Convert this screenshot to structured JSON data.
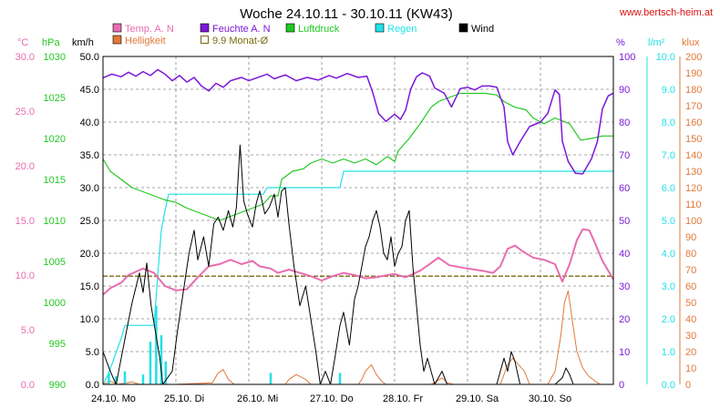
{
  "chart_data": {
    "type": "line",
    "title": "Woche 24.10.11 - 30.10.11 (KW43)",
    "source": "www.bertsch-heim.at",
    "colors": {
      "temp": "#e86cb0",
      "feuchte": "#7a18d8",
      "luftdruck": "#22c822",
      "regen": "#22e0e8",
      "wind": "#000000",
      "helligkeit": "#e07838",
      "monat": "#7a6a10",
      "link": "#dd1111",
      "grid": "#888888"
    },
    "legend": [
      {
        "label": "Temp. A. N",
        "key": "temp",
        "style": "box"
      },
      {
        "label": "Feuchte A. N",
        "key": "feuchte",
        "style": "box"
      },
      {
        "label": "Luftdruck",
        "key": "luftdruck",
        "style": "box"
      },
      {
        "label": "Regen",
        "key": "regen",
        "style": "box"
      },
      {
        "label": "Wind",
        "key": "wind",
        "style": "box"
      },
      {
        "label": "Helligkeit",
        "key": "helligkeit",
        "style": "box"
      },
      {
        "label": "9.9 Monat-Ø",
        "key": "monat",
        "style": "outline"
      }
    ],
    "axes": {
      "temp": {
        "unit": "°C",
        "min": 0,
        "max": 30,
        "step": 5,
        "decimals": 1
      },
      "pressure": {
        "unit": "hPa",
        "min": 990,
        "max": 1030,
        "step": 5,
        "decimals": 0
      },
      "wind": {
        "unit": "km/h",
        "min": 0,
        "max": 50,
        "step": 5,
        "decimals": 1
      },
      "humidity": {
        "unit": "%",
        "min": 0,
        "max": 100,
        "step": 10,
        "decimals": 0
      },
      "rain": {
        "unit": "l/m²",
        "min": 0,
        "max": 10,
        "step": 1,
        "decimals": 1
      },
      "lux": {
        "unit": "klux",
        "min": 0,
        "max": 200,
        "step": 10,
        "decimals": 0
      }
    },
    "x_range": [
      0,
      7
    ],
    "x_labels": [
      "24.10. Mo",
      "25.10. Di",
      "26.10. Mi",
      "27.10. Do",
      "28.10. Fr",
      "29.10. Sa",
      "30.10. So"
    ],
    "series": {
      "temp": [
        [
          0,
          8.2
        ],
        [
          0.1,
          8.8
        ],
        [
          0.25,
          9.3
        ],
        [
          0.35,
          10.0
        ],
        [
          0.45,
          10.3
        ],
        [
          0.55,
          10.6
        ],
        [
          0.7,
          10.2
        ],
        [
          0.85,
          9.0
        ],
        [
          1.0,
          8.6
        ],
        [
          1.15,
          8.7
        ],
        [
          1.3,
          9.8
        ],
        [
          1.45,
          10.8
        ],
        [
          1.6,
          11.0
        ],
        [
          1.75,
          11.4
        ],
        [
          1.9,
          11.0
        ],
        [
          2.05,
          11.3
        ],
        [
          2.15,
          10.8
        ],
        [
          2.3,
          10.6
        ],
        [
          2.4,
          10.2
        ],
        [
          2.55,
          10.5
        ],
        [
          2.7,
          10.2
        ],
        [
          2.85,
          9.9
        ],
        [
          3.0,
          9.5
        ],
        [
          3.15,
          9.9
        ],
        [
          3.3,
          10.2
        ],
        [
          3.45,
          10.0
        ],
        [
          3.6,
          9.7
        ],
        [
          3.75,
          9.8
        ],
        [
          3.9,
          10.0
        ],
        [
          4.0,
          10.1
        ],
        [
          4.15,
          9.8
        ],
        [
          4.35,
          10.4
        ],
        [
          4.5,
          11.1
        ],
        [
          4.6,
          11.6
        ],
        [
          4.75,
          10.9
        ],
        [
          5.0,
          10.6
        ],
        [
          5.2,
          10.4
        ],
        [
          5.35,
          10.2
        ],
        [
          5.45,
          10.8
        ],
        [
          5.55,
          12.4
        ],
        [
          5.65,
          12.7
        ],
        [
          5.75,
          12.2
        ],
        [
          5.9,
          11.6
        ],
        [
          6.05,
          11.4
        ],
        [
          6.2,
          11.0
        ],
        [
          6.3,
          9.4
        ],
        [
          6.4,
          11.0
        ],
        [
          6.5,
          13.2
        ],
        [
          6.58,
          14.2
        ],
        [
          6.67,
          14.1
        ],
        [
          6.75,
          12.9
        ],
        [
          6.85,
          11.3
        ],
        [
          7.0,
          9.6
        ]
      ],
      "feuchte": [
        [
          0,
          93.5
        ],
        [
          0.12,
          94.6
        ],
        [
          0.25,
          93.8
        ],
        [
          0.35,
          95.2
        ],
        [
          0.45,
          94.0
        ],
        [
          0.55,
          95.4
        ],
        [
          0.65,
          94.2
        ],
        [
          0.75,
          96.0
        ],
        [
          0.85,
          94.6
        ],
        [
          0.95,
          92.6
        ],
        [
          1.05,
          94.2
        ],
        [
          1.15,
          92.2
        ],
        [
          1.25,
          93.6
        ],
        [
          1.35,
          91.0
        ],
        [
          1.45,
          89.5
        ],
        [
          1.55,
          91.8
        ],
        [
          1.65,
          90.6
        ],
        [
          1.75,
          92.6
        ],
        [
          1.9,
          93.6
        ],
        [
          2.0,
          92.6
        ],
        [
          2.15,
          93.8
        ],
        [
          2.25,
          94.6
        ],
        [
          2.35,
          93.2
        ],
        [
          2.5,
          94.4
        ],
        [
          2.65,
          92.6
        ],
        [
          2.8,
          93.6
        ],
        [
          2.95,
          92.8
        ],
        [
          3.1,
          94.2
        ],
        [
          3.2,
          93.4
        ],
        [
          3.35,
          94.8
        ],
        [
          3.5,
          93.6
        ],
        [
          3.62,
          94.0
        ],
        [
          3.7,
          89.0
        ],
        [
          3.78,
          82.6
        ],
        [
          3.88,
          80.2
        ],
        [
          4.0,
          82.4
        ],
        [
          4.08,
          80.8
        ],
        [
          4.15,
          83.6
        ],
        [
          4.22,
          90.0
        ],
        [
          4.3,
          93.8
        ],
        [
          4.38,
          95.0
        ],
        [
          4.48,
          94.0
        ],
        [
          4.55,
          90.4
        ],
        [
          4.68,
          88.8
        ],
        [
          4.78,
          84.6
        ],
        [
          4.9,
          90.2
        ],
        [
          5.0,
          90.6
        ],
        [
          5.1,
          89.8
        ],
        [
          5.2,
          91.0
        ],
        [
          5.3,
          91.0
        ],
        [
          5.4,
          90.6
        ],
        [
          5.5,
          84.6
        ],
        [
          5.55,
          74.0
        ],
        [
          5.62,
          70.0
        ],
        [
          5.72,
          74.0
        ],
        [
          5.85,
          78.6
        ],
        [
          6.0,
          80.0
        ],
        [
          6.1,
          82.6
        ],
        [
          6.2,
          89.8
        ],
        [
          6.26,
          88.4
        ],
        [
          6.3,
          74.2
        ],
        [
          6.38,
          68.0
        ],
        [
          6.48,
          64.4
        ],
        [
          6.58,
          64.2
        ],
        [
          6.7,
          68.8
        ],
        [
          6.78,
          74.0
        ],
        [
          6.85,
          84.0
        ],
        [
          6.93,
          88.0
        ],
        [
          7.0,
          88.8
        ]
      ],
      "luftdruck": [
        [
          0,
          1017.5
        ],
        [
          0.1,
          1016.0
        ],
        [
          0.25,
          1015.0
        ],
        [
          0.4,
          1014.0
        ],
        [
          0.55,
          1013.5
        ],
        [
          0.7,
          1013.0
        ],
        [
          0.85,
          1012.5
        ],
        [
          1.0,
          1012.2
        ],
        [
          1.15,
          1011.5
        ],
        [
          1.3,
          1011.0
        ],
        [
          1.45,
          1010.5
        ],
        [
          1.6,
          1010.0
        ],
        [
          1.75,
          1010.5
        ],
        [
          1.9,
          1011.0
        ],
        [
          2.05,
          1011.5
        ],
        [
          2.2,
          1012.0
        ],
        [
          2.3,
          1013.0
        ],
        [
          2.4,
          1013.0
        ],
        [
          2.45,
          1015.0
        ],
        [
          2.6,
          1016.0
        ],
        [
          2.75,
          1016.3
        ],
        [
          2.85,
          1017.0
        ],
        [
          3.0,
          1017.5
        ],
        [
          3.15,
          1017.0
        ],
        [
          3.3,
          1017.5
        ],
        [
          3.45,
          1017.0
        ],
        [
          3.6,
          1017.5
        ],
        [
          3.75,
          1016.8
        ],
        [
          3.9,
          1017.8
        ],
        [
          4.0,
          1017.2
        ],
        [
          4.05,
          1018.5
        ],
        [
          4.2,
          1020.0
        ],
        [
          4.35,
          1021.8
        ],
        [
          4.5,
          1023.8
        ],
        [
          4.6,
          1024.5
        ],
        [
          4.75,
          1025.0
        ],
        [
          4.9,
          1025.5
        ],
        [
          5.0,
          1025.5
        ],
        [
          5.25,
          1025.5
        ],
        [
          5.4,
          1025.3
        ],
        [
          5.5,
          1024.5
        ],
        [
          5.65,
          1023.8
        ],
        [
          5.8,
          1023.5
        ],
        [
          5.9,
          1022.5
        ],
        [
          6.05,
          1021.8
        ],
        [
          6.2,
          1022.5
        ],
        [
          6.4,
          1021.8
        ],
        [
          6.55,
          1019.8
        ],
        [
          6.7,
          1020.0
        ],
        [
          6.85,
          1020.3
        ],
        [
          7.0,
          1020.3
        ]
      ],
      "regen": [
        [
          0,
          0
        ],
        [
          0.05,
          0.2
        ],
        [
          0.12,
          0.6
        ],
        [
          0.2,
          1.1
        ],
        [
          0.25,
          1.4
        ],
        [
          0.3,
          1.8
        ],
        [
          0.5,
          1.8
        ],
        [
          0.7,
          1.8
        ],
        [
          0.75,
          3.3
        ],
        [
          0.8,
          4.7
        ],
        [
          0.85,
          5.3
        ],
        [
          0.9,
          5.8
        ],
        [
          2.2,
          5.8
        ],
        [
          2.25,
          6.0
        ],
        [
          2.9,
          6.0
        ],
        [
          3.25,
          6.0
        ],
        [
          3.3,
          6.5
        ],
        [
          7.0,
          6.5
        ]
      ],
      "regen_bars": [
        [
          0.08,
          0.35
        ],
        [
          0.18,
          0.25
        ],
        [
          0.3,
          0.4
        ],
        [
          0.55,
          0.3
        ],
        [
          0.65,
          1.3
        ],
        [
          0.73,
          2.4
        ],
        [
          0.8,
          1.5
        ],
        [
          0.86,
          0.7
        ],
        [
          2.3,
          0.35
        ],
        [
          3.25,
          0.35
        ]
      ],
      "wind": [
        [
          0,
          5.0
        ],
        [
          0.1,
          2.0
        ],
        [
          0.18,
          0
        ],
        [
          0.25,
          4.0
        ],
        [
          0.32,
          8.0
        ],
        [
          0.4,
          12.5
        ],
        [
          0.5,
          17.0
        ],
        [
          0.55,
          14.0
        ],
        [
          0.6,
          18.5
        ],
        [
          0.66,
          12.0
        ],
        [
          0.72,
          8.0
        ],
        [
          0.78,
          4.0
        ],
        [
          0.82,
          0
        ],
        [
          0.95,
          2.0
        ],
        [
          1.02,
          8.0
        ],
        [
          1.1,
          14.0
        ],
        [
          1.18,
          20.0
        ],
        [
          1.25,
          23.5
        ],
        [
          1.3,
          19.0
        ],
        [
          1.38,
          22.5
        ],
        [
          1.45,
          18.0
        ],
        [
          1.52,
          24.5
        ],
        [
          1.58,
          25.5
        ],
        [
          1.65,
          23.5
        ],
        [
          1.72,
          26.5
        ],
        [
          1.78,
          24.0
        ],
        [
          1.83,
          27.0
        ],
        [
          1.88,
          36.5
        ],
        [
          1.93,
          28.0
        ],
        [
          1.98,
          26.0
        ],
        [
          2.05,
          24.0
        ],
        [
          2.1,
          27.5
        ],
        [
          2.15,
          29.5
        ],
        [
          2.22,
          26.0
        ],
        [
          2.28,
          27.0
        ],
        [
          2.35,
          29.0
        ],
        [
          2.4,
          25.5
        ],
        [
          2.45,
          29.5
        ],
        [
          2.5,
          30.0
        ],
        [
          2.55,
          24.5
        ],
        [
          2.62,
          18.0
        ],
        [
          2.7,
          12.0
        ],
        [
          2.78,
          15.0
        ],
        [
          2.85,
          10.0
        ],
        [
          2.92,
          5.0
        ],
        [
          2.98,
          0
        ],
        [
          3.05,
          2.0
        ],
        [
          3.12,
          0
        ],
        [
          3.18,
          4.0
        ],
        [
          3.25,
          9.0
        ],
        [
          3.3,
          11.0
        ],
        [
          3.38,
          6.0
        ],
        [
          3.45,
          13.0
        ],
        [
          3.5,
          15.0
        ],
        [
          3.55,
          18.0
        ],
        [
          3.6,
          21.0
        ],
        [
          3.65,
          22.5
        ],
        [
          3.7,
          25.0
        ],
        [
          3.75,
          26.5
        ],
        [
          3.8,
          24.0
        ],
        [
          3.85,
          20.0
        ],
        [
          3.9,
          19.0
        ],
        [
          3.95,
          22.5
        ],
        [
          4.0,
          18.0
        ],
        [
          4.05,
          20.0
        ],
        [
          4.1,
          21.0
        ],
        [
          4.15,
          25.0
        ],
        [
          4.2,
          26.5
        ],
        [
          4.25,
          18.0
        ],
        [
          4.3,
          12.0
        ],
        [
          4.35,
          6.0
        ],
        [
          4.4,
          2.0
        ],
        [
          4.45,
          4.0
        ],
        [
          4.5,
          2.0
        ],
        [
          4.55,
          0
        ],
        [
          4.65,
          2.0
        ],
        [
          4.72,
          0
        ],
        [
          5.4,
          0
        ],
        [
          5.45,
          2.0
        ],
        [
          5.5,
          4.0
        ],
        [
          5.55,
          2.0
        ],
        [
          5.6,
          5.0
        ],
        [
          5.65,
          3.5
        ],
        [
          5.72,
          0
        ],
        [
          6.1,
          0
        ],
        [
          6.2,
          0
        ],
        [
          6.3,
          1.0
        ],
        [
          6.35,
          2.5
        ],
        [
          6.4,
          1.5
        ],
        [
          6.45,
          0
        ],
        [
          7.0,
          0
        ]
      ],
      "helligkeit": [
        [
          0,
          0
        ],
        [
          0.1,
          2.0
        ],
        [
          0.2,
          0
        ],
        [
          0.4,
          1.5
        ],
        [
          0.5,
          0
        ],
        [
          1.0,
          0
        ],
        [
          1.5,
          1.0
        ],
        [
          1.58,
          7.0
        ],
        [
          1.65,
          9.0
        ],
        [
          1.72,
          3.0
        ],
        [
          1.8,
          0
        ],
        [
          2.5,
          0
        ],
        [
          2.55,
          3.0
        ],
        [
          2.65,
          6.0
        ],
        [
          2.78,
          3.0
        ],
        [
          2.85,
          0
        ],
        [
          3.5,
          0
        ],
        [
          3.55,
          3.0
        ],
        [
          3.6,
          8.0
        ],
        [
          3.68,
          12.0
        ],
        [
          3.75,
          6.0
        ],
        [
          3.82,
          2.0
        ],
        [
          3.88,
          0
        ],
        [
          4.5,
          0
        ],
        [
          4.58,
          2.0
        ],
        [
          4.65,
          4.0
        ],
        [
          4.72,
          1.0
        ],
        [
          4.8,
          0
        ],
        [
          5.45,
          0
        ],
        [
          5.55,
          12.0
        ],
        [
          5.62,
          16.0
        ],
        [
          5.7,
          12.0
        ],
        [
          5.78,
          8.0
        ],
        [
          5.85,
          0
        ],
        [
          6.1,
          0
        ],
        [
          6.2,
          8.0
        ],
        [
          6.28,
          30.0
        ],
        [
          6.33,
          50.0
        ],
        [
          6.38,
          57.0
        ],
        [
          6.44,
          38.0
        ],
        [
          6.5,
          20.0
        ],
        [
          6.58,
          10.0
        ],
        [
          6.66,
          5.0
        ],
        [
          6.75,
          2.0
        ],
        [
          6.82,
          0
        ],
        [
          7.0,
          0
        ]
      ],
      "monat_temp": 9.9
    }
  }
}
